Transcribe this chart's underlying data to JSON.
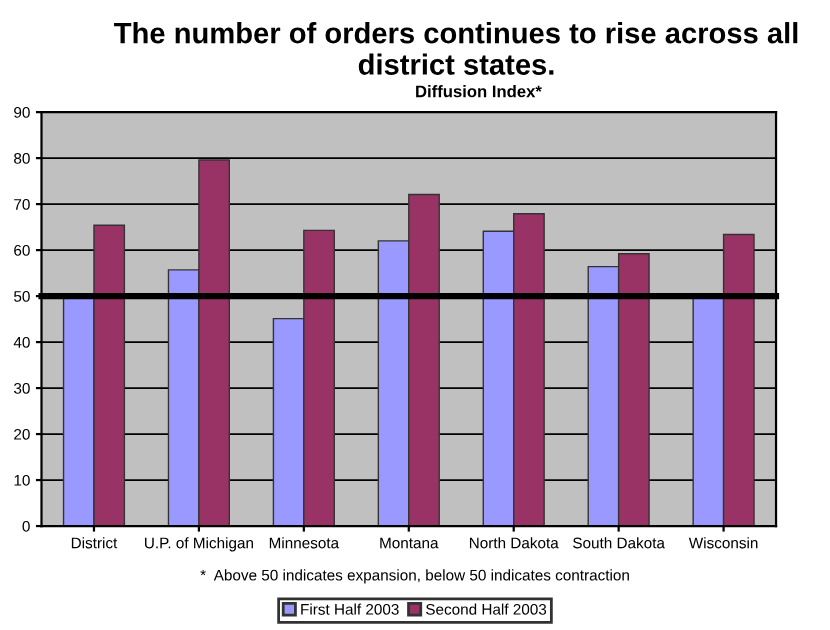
{
  "chart_data": {
    "type": "bar",
    "title": "The number of orders continues to rise across all district states.",
    "subtitle": "Diffusion Index*",
    "categories": [
      "District",
      "U.P. of Michigan",
      "Minnesota",
      "Montana",
      "North Dakota",
      "South Dakota",
      "Wisconsin"
    ],
    "series": [
      {
        "name": "First Half 2003",
        "color": "#9999ff",
        "values": [
          50.5,
          55.7,
          45.1,
          62.0,
          64.1,
          56.4,
          49.5
        ]
      },
      {
        "name": "Second Half 2003",
        "color": "#993366",
        "values": [
          65.4,
          79.6,
          64.3,
          72.1,
          67.9,
          59.2,
          63.4
        ]
      }
    ],
    "ylim": [
      0,
      90
    ],
    "yticks": [
      0,
      10,
      20,
      30,
      40,
      50,
      60,
      70,
      80,
      90
    ],
    "grid": "y",
    "legend": "bottom",
    "ref_lines": [
      {
        "axis": "y",
        "value": 50,
        "color": "#000000"
      }
    ],
    "annotations": [
      "*  Above 50 indicates expansion, below 50 indicates contraction"
    ]
  }
}
